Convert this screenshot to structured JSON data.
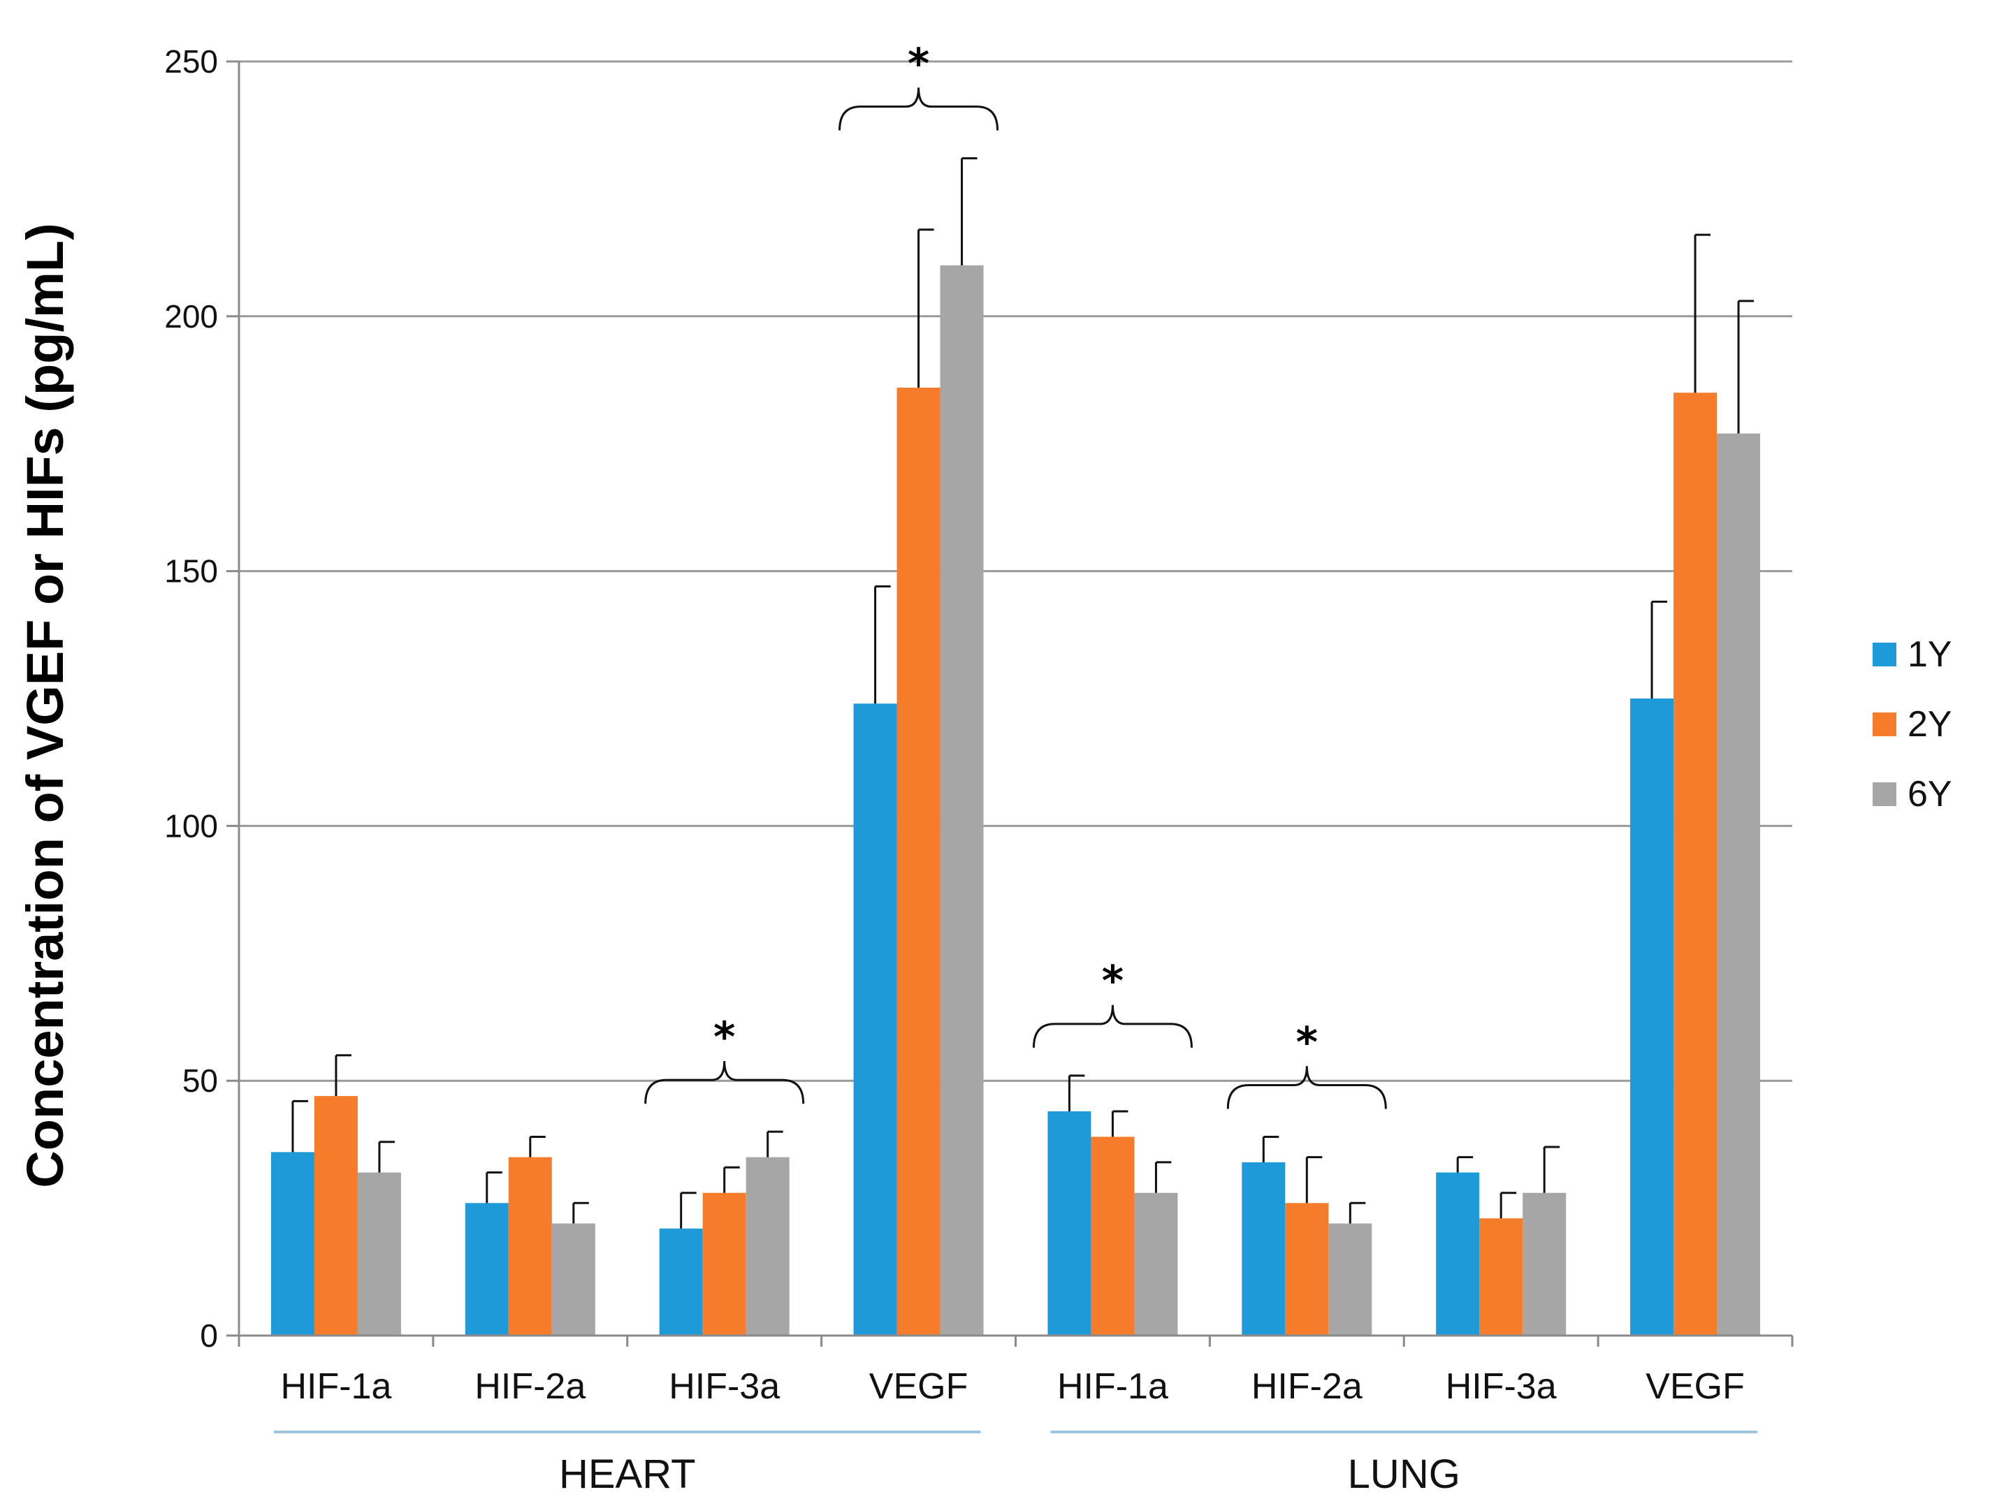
{
  "chart_data": {
    "type": "bar",
    "ylabel": "Concentration of VGEF or HIFs (pg/mL)",
    "ylim": [
      0,
      250
    ],
    "yticks": [
      0,
      50,
      100,
      150,
      200,
      250
    ],
    "grid": true,
    "legend_position": "right",
    "categories": [
      "HIF-1a",
      "HIF-2a",
      "HIF-3a",
      "VEGF",
      "HIF-1a",
      "HIF-2a",
      "HIF-3a",
      "VEGF"
    ],
    "groups": [
      {
        "label": "HEART",
        "categories": [
          0,
          1,
          2,
          3
        ]
      },
      {
        "label": "LUNG",
        "categories": [
          4,
          5,
          6,
          7
        ]
      }
    ],
    "series": [
      {
        "name": "1Y",
        "color": "#1f9ad8",
        "values": [
          36,
          26,
          21,
          124,
          44,
          34,
          32,
          125
        ],
        "errors": [
          10,
          6,
          7,
          23,
          7,
          5,
          3,
          19
        ]
      },
      {
        "name": "2Y",
        "color": "#f47c2b",
        "values": [
          47,
          35,
          28,
          186,
          39,
          26,
          23,
          185
        ],
        "errors": [
          8,
          4,
          5,
          31,
          5,
          9,
          5,
          31
        ]
      },
      {
        "name": "6Y",
        "color": "#a6a6a6",
        "values": [
          32,
          22,
          35,
          210,
          28,
          22,
          28,
          177
        ],
        "errors": [
          6,
          4,
          5,
          21,
          6,
          4,
          9,
          26
        ]
      }
    ],
    "annotations": [
      {
        "text": "*",
        "category": 2
      },
      {
        "text": "*",
        "category": 3
      },
      {
        "text": "*",
        "category": 4
      },
      {
        "text": "*",
        "category": 5
      }
    ]
  }
}
